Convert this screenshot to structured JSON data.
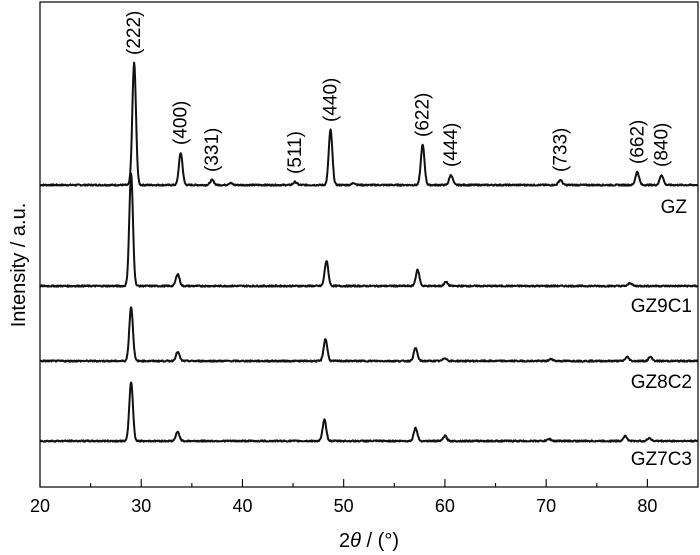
{
  "chart_data": {
    "type": "line",
    "xlabel_prefix": "2",
    "xlabel_symbol": "θ",
    "xlabel_suffix": " / (°)",
    "ylabel": "Intensity / a.u.",
    "xlim": [
      20,
      85
    ],
    "xticks": [
      20,
      30,
      40,
      50,
      60,
      70,
      80
    ],
    "y_ticks_shown": false,
    "grid": false,
    "peak_labels": [
      {
        "text": "(222)",
        "x": 29.3
      },
      {
        "text": "(400)",
        "x": 33.9
      },
      {
        "text": "(331)",
        "x": 37.0
      },
      {
        "text": "(511)",
        "x": 45.2
      },
      {
        "text": "(440)",
        "x": 48.7
      },
      {
        "text": "(622)",
        "x": 57.8
      },
      {
        "text": "(444)",
        "x": 60.6
      },
      {
        "text": "(733)",
        "x": 71.4
      },
      {
        "text": "(662)",
        "x": 79.0
      },
      {
        "text": "(840)",
        "x": 81.4
      }
    ],
    "series": [
      {
        "name": "GZ",
        "peaks": [
          [
            29.3,
            122
          ],
          [
            33.9,
            32
          ],
          [
            37.0,
            5
          ],
          [
            38.8,
            2
          ],
          [
            45.2,
            3
          ],
          [
            48.7,
            55
          ],
          [
            51.0,
            2
          ],
          [
            57.8,
            40
          ],
          [
            60.6,
            10
          ],
          [
            71.4,
            5
          ],
          [
            79.0,
            13
          ],
          [
            81.4,
            10
          ]
        ]
      },
      {
        "name": "GZ9C1",
        "peaks": [
          [
            29.0,
            112
          ],
          [
            33.6,
            12
          ],
          [
            48.3,
            25
          ],
          [
            57.3,
            16
          ],
          [
            60.1,
            4
          ],
          [
            78.3,
            3
          ]
        ]
      },
      {
        "name": "GZ8C2",
        "peaks": [
          [
            29.0,
            54
          ],
          [
            33.6,
            9
          ],
          [
            48.2,
            22
          ],
          [
            57.1,
            13
          ],
          [
            60.0,
            3
          ],
          [
            70.5,
            2
          ],
          [
            78.0,
            4
          ],
          [
            80.3,
            4
          ]
        ]
      },
      {
        "name": "GZ7C3",
        "peaks": [
          [
            29.0,
            59
          ],
          [
            33.6,
            9
          ],
          [
            48.1,
            21
          ],
          [
            57.1,
            13
          ],
          [
            60.0,
            5
          ],
          [
            70.3,
            2
          ],
          [
            77.8,
            5
          ],
          [
            80.2,
            3
          ]
        ]
      }
    ]
  }
}
